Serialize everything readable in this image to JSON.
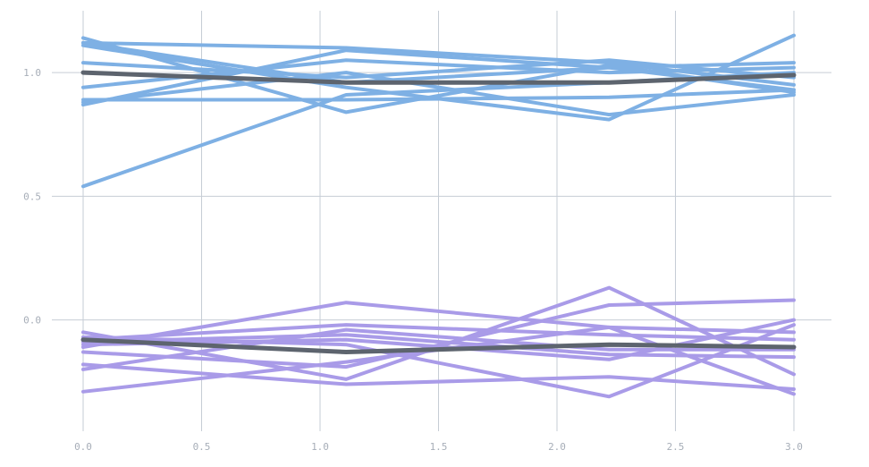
{
  "chart_data": {
    "type": "line",
    "title": "",
    "xlabel": "",
    "ylabel": "",
    "xlim": [
      0.0,
      3.0
    ],
    "ylim": [
      -0.45,
      1.25
    ],
    "x_ticks": [
      0.0,
      0.5,
      1.0,
      1.5,
      2.0,
      2.5,
      3.0
    ],
    "x_tick_labels": [
      "0.0",
      "0.5",
      "1.0",
      "1.5",
      "2.0",
      "2.5",
      "3.0"
    ],
    "y_ticks": [
      0.0,
      0.5,
      1.0
    ],
    "y_tick_labels": [
      "0.0",
      "0.5",
      "1.0"
    ],
    "grid": true,
    "legend": "none",
    "x": [
      0.0,
      1.11,
      2.22,
      3.0
    ],
    "groups": [
      {
        "color": "#7eb0e4",
        "series": [
          {
            "values": [
              1.14,
              0.84,
              1.03,
              0.92
            ]
          },
          {
            "values": [
              1.12,
              0.96,
              1.02,
              1.04
            ]
          },
          {
            "values": [
              0.54,
              0.91,
              0.96,
              1.0
            ]
          },
          {
            "values": [
              1.04,
              0.98,
              1.05,
              0.98
            ]
          },
          {
            "values": [
              0.87,
              1.09,
              1.02,
              0.93
            ]
          },
          {
            "values": [
              0.89,
              0.89,
              0.9,
              0.93
            ]
          },
          {
            "values": [
              0.94,
              1.05,
              1.0,
              1.02
            ]
          },
          {
            "values": [
              1.12,
              1.1,
              1.04,
              0.95
            ]
          },
          {
            "values": [
              1.11,
              0.94,
              0.81,
              1.15
            ]
          },
          {
            "values": [
              0.88,
              1.0,
              0.83,
              0.91
            ]
          }
        ]
      },
      {
        "color": "#a99be8",
        "series": [
          {
            "values": [
              -0.05,
              -0.24,
              0.13,
              -0.22
            ]
          },
          {
            "values": [
              -0.11,
              0.07,
              -0.03,
              -0.3
            ]
          },
          {
            "values": [
              -0.29,
              -0.17,
              -0.03,
              -0.05
            ]
          },
          {
            "values": [
              -0.18,
              -0.26,
              -0.23,
              -0.28
            ]
          },
          {
            "values": [
              -0.1,
              -0.08,
              -0.16,
              0.0
            ]
          },
          {
            "values": [
              -0.2,
              -0.04,
              -0.12,
              -0.12
            ]
          },
          {
            "values": [
              -0.08,
              -0.02,
              -0.06,
              -0.08
            ]
          },
          {
            "values": [
              -0.13,
              -0.19,
              0.06,
              0.08
            ]
          },
          {
            "values": [
              -0.07,
              -0.1,
              -0.31,
              -0.02
            ]
          },
          {
            "values": [
              -0.09,
              -0.06,
              -0.14,
              -0.15
            ]
          }
        ]
      }
    ],
    "mean_lines": {
      "color": "#5d646e",
      "series": [
        {
          "values": [
            1.0,
            0.96,
            0.96,
            0.99
          ]
        },
        {
          "values": [
            -0.08,
            -0.13,
            -0.1,
            -0.11
          ]
        }
      ]
    },
    "grid_color": "#c6cdd5"
  }
}
